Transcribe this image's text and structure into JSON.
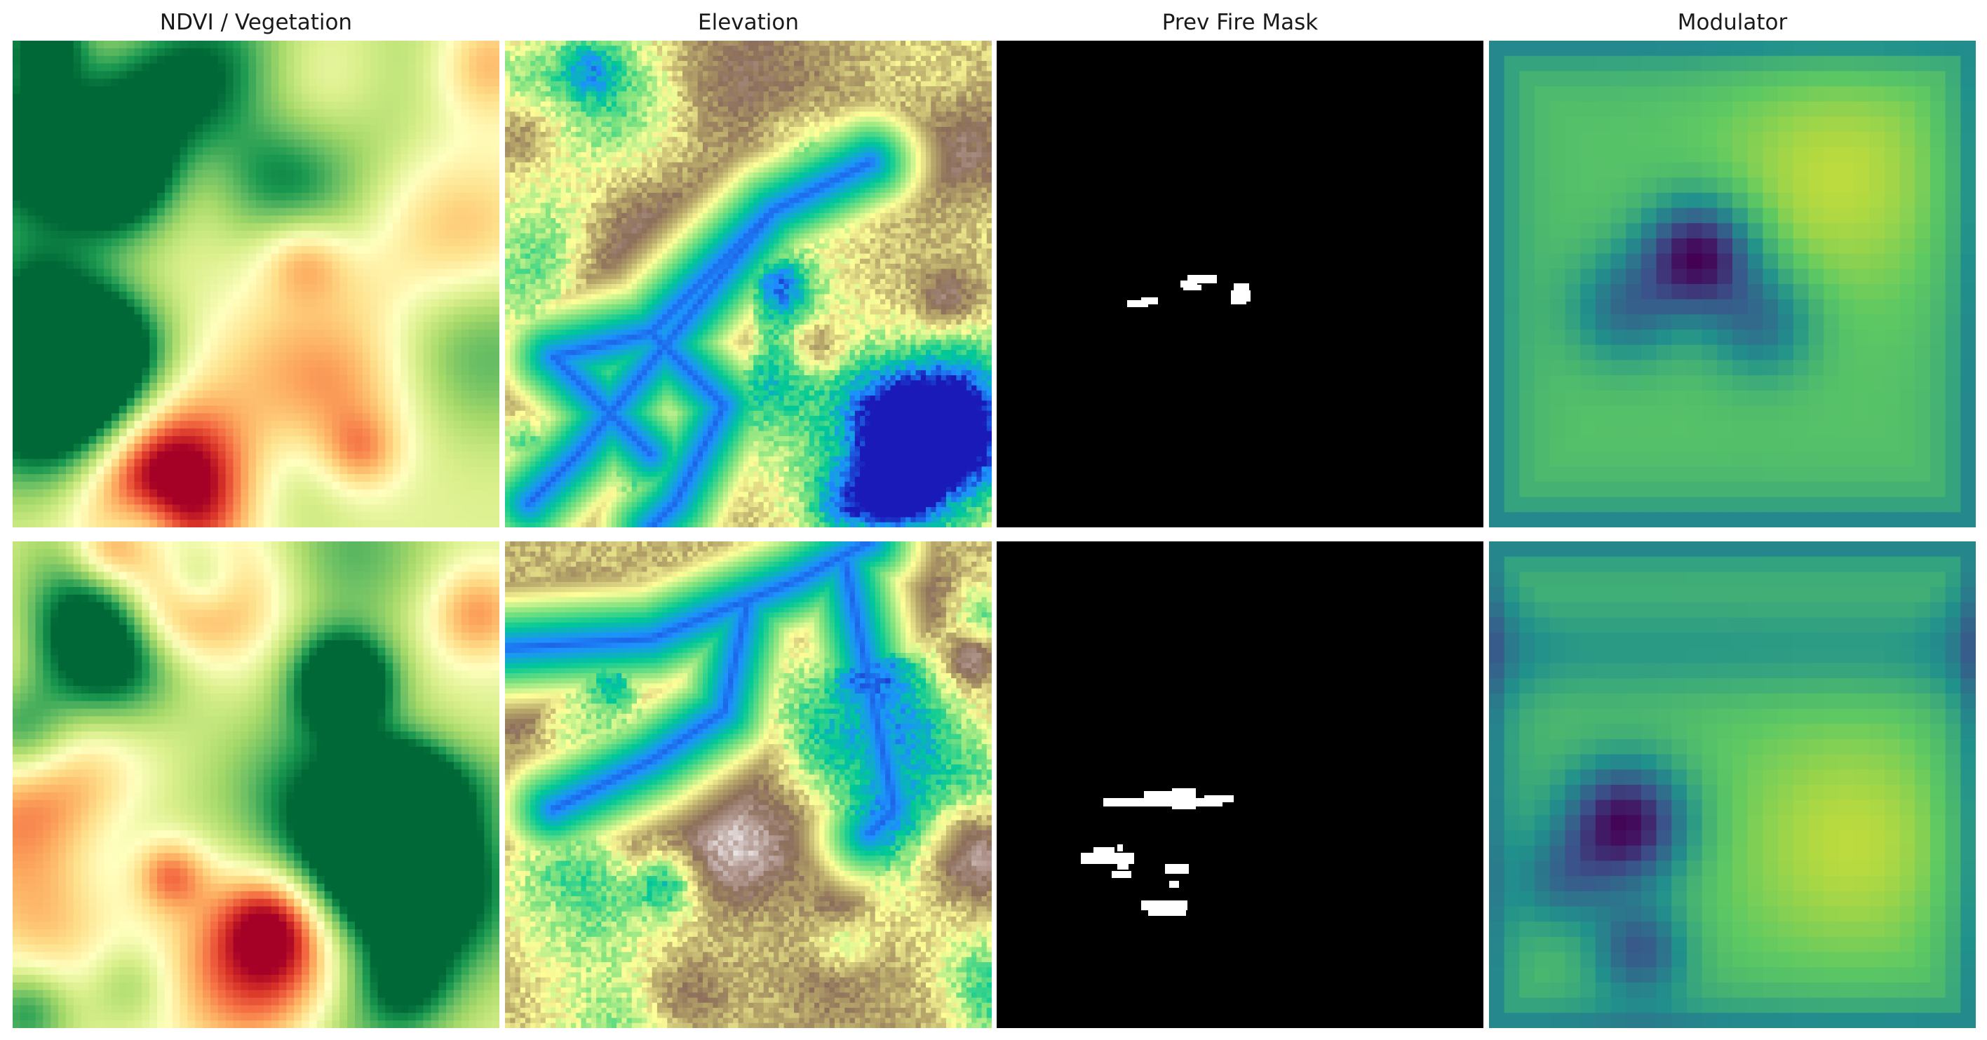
{
  "columns": [
    {
      "title": "NDVI / Vegetation",
      "kind": "ndvi"
    },
    {
      "title": "Elevation",
      "kind": "elevation"
    },
    {
      "title": "Prev Fire Mask",
      "kind": "firemask"
    },
    {
      "title": "Modulator",
      "kind": "modulator"
    }
  ],
  "rows": 2,
  "colors": {
    "ndvi_colormap": [
      "#006837",
      "#1a9850",
      "#66bd63",
      "#a6d96a",
      "#d9ef8b",
      "#ffffbf",
      "#fee08b",
      "#fdae61",
      "#f46d43",
      "#d73027",
      "#a50026"
    ],
    "elevation_colormap": [
      "#1a1ab8",
      "#1e90ff",
      "#00c896",
      "#7ee27e",
      "#ffff99",
      "#b8a86a",
      "#8c6e5a",
      "#b39a92",
      "#e8e2e2"
    ],
    "firemask_background": "#000000",
    "firemask_fire": "#ffffff",
    "modulator_colormap": [
      "#440154",
      "#3b528b",
      "#21918c",
      "#5ec962",
      "#fde725"
    ]
  }
}
